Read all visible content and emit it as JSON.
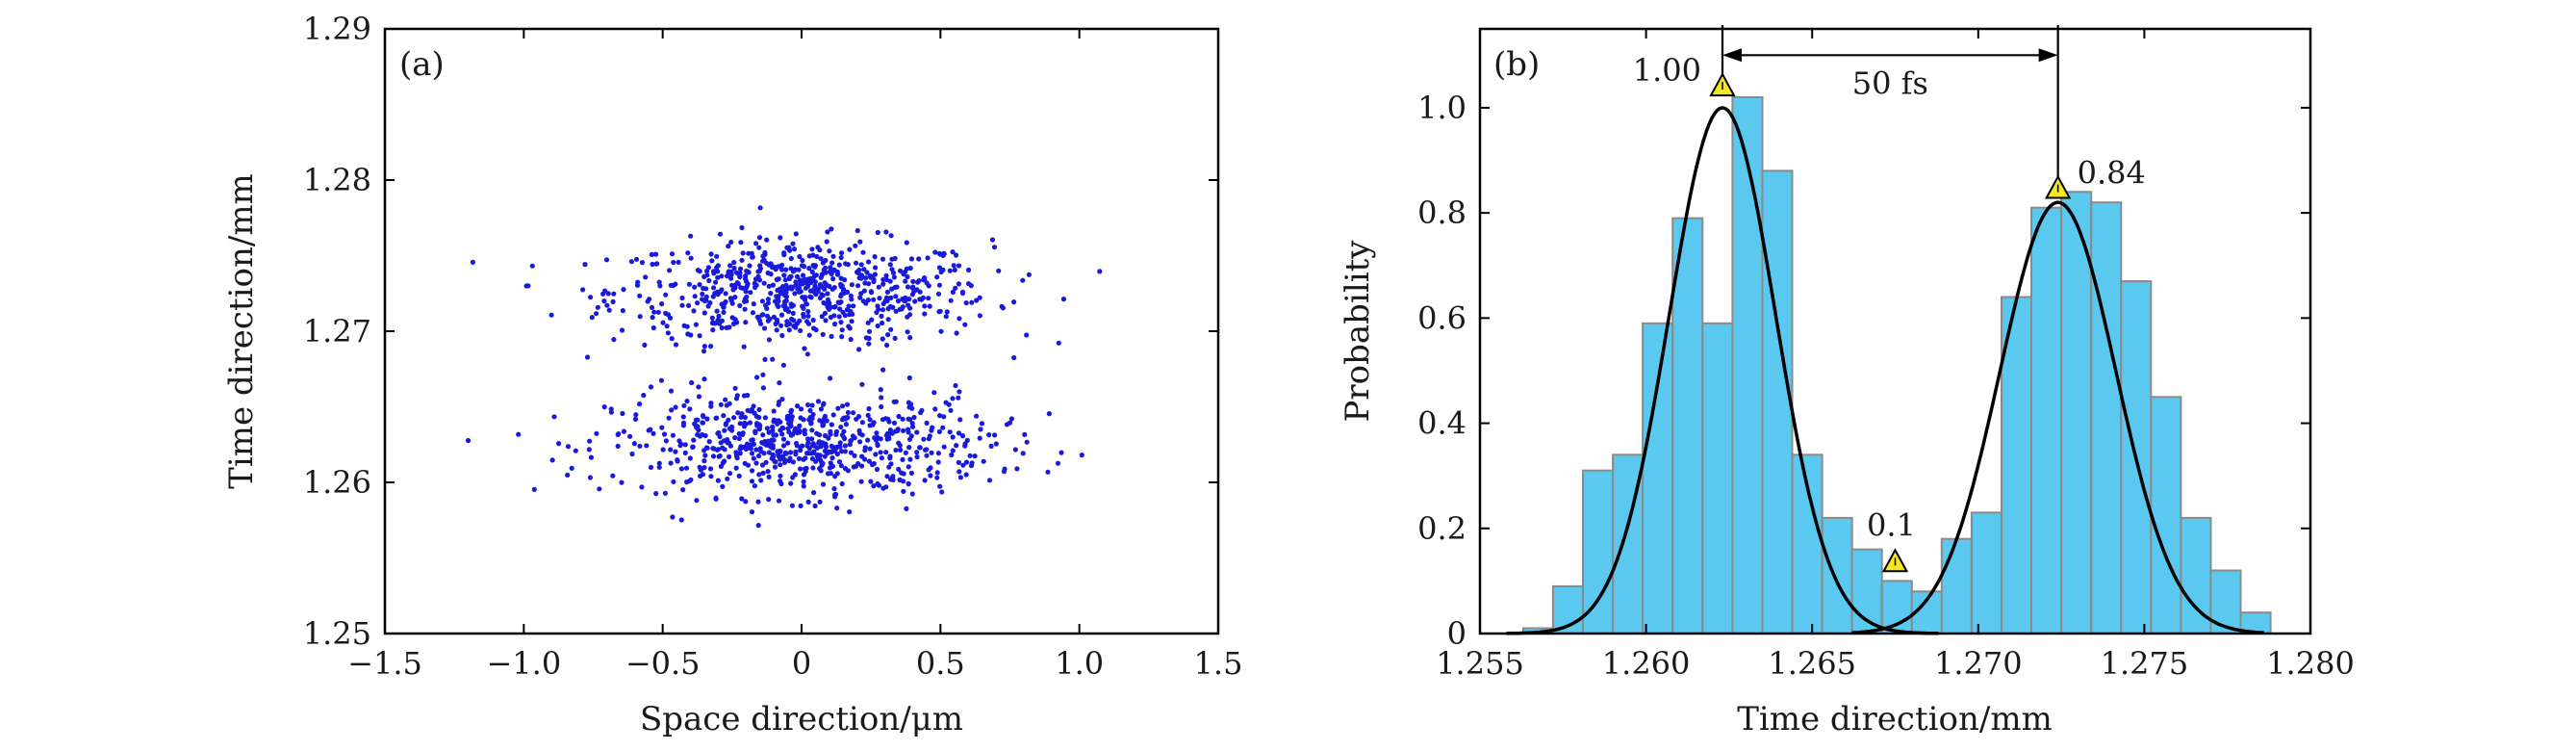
{
  "chart_data": [
    {
      "type": "scatter",
      "panel_label": "(a)",
      "xlabel": "Space direction/μm",
      "ylabel": "Time direction/mm",
      "xlim": [
        -1.5,
        1.5
      ],
      "ylim": [
        1.25,
        1.29
      ],
      "xticks": [
        -1.5,
        -1.0,
        -0.5,
        0,
        0.5,
        1.0,
        1.5
      ],
      "xtick_labels": [
        "−1.5",
        "−1.0",
        "−0.5",
        "0",
        "0.5",
        "1.0",
        "1.5"
      ],
      "yticks": [
        1.25,
        1.26,
        1.27,
        1.28,
        1.29
      ],
      "ytick_labels": [
        "1.25",
        "1.26",
        "1.27",
        "1.28",
        "1.29"
      ],
      "point_color": "#1a1adb",
      "grid": false,
      "clusters": [
        {
          "name": "upper",
          "x_center": 0.0,
          "y_center": 1.2726,
          "x_spread": 0.34,
          "y_spread": 0.0017,
          "count": 700
        },
        {
          "name": "lower",
          "x_center": 0.0,
          "y_center": 1.2625,
          "x_spread": 0.34,
          "y_spread": 0.0017,
          "count": 700
        }
      ]
    },
    {
      "type": "bar",
      "panel_label": "(b)",
      "xlabel": "Time direction/mm",
      "ylabel": "Probability",
      "xlim": [
        1.255,
        1.28
      ],
      "ylim": [
        0,
        1.15
      ],
      "xticks": [
        1.255,
        1.26,
        1.265,
        1.27,
        1.275,
        1.28
      ],
      "xtick_labels": [
        "1.255",
        "1.260",
        "1.265",
        "1.270",
        "1.275",
        "1.280"
      ],
      "yticks": [
        0,
        0.2,
        0.4,
        0.6,
        0.8,
        1.0
      ],
      "ytick_labels": [
        "0",
        "0.2",
        "0.4",
        "0.6",
        "0.8",
        "1.0"
      ],
      "bar_color": "#5bc8f0",
      "bar_edge_color": "#8a8a8a",
      "bin_edges": [
        1.2563,
        1.2572,
        1.2581,
        1.259,
        1.2599,
        1.2608,
        1.2617,
        1.2626,
        1.2635,
        1.2644,
        1.2653,
        1.2662,
        1.2671,
        1.268,
        1.2689,
        1.2698,
        1.2707,
        1.2716,
        1.2725,
        1.2734,
        1.2743,
        1.2752,
        1.2761,
        1.277,
        1.2779,
        1.2788
      ],
      "values": [
        0.01,
        0.09,
        0.31,
        0.34,
        0.59,
        0.79,
        0.59,
        1.02,
        0.88,
        0.34,
        0.22,
        0.16,
        0.1,
        0.08,
        0.18,
        0.23,
        0.64,
        0.81,
        0.84,
        0.82,
        0.67,
        0.45,
        0.22,
        0.12,
        0.04
      ],
      "fit_curves": [
        {
          "name": "peak-1",
          "mu": 1.2623,
          "sigma": 0.0016,
          "amplitude": 1.0,
          "x_range": [
            1.2558,
            1.2688
          ],
          "color": "#000000"
        },
        {
          "name": "peak-2",
          "mu": 1.2724,
          "sigma": 0.00175,
          "amplitude": 0.82,
          "x_range": [
            1.2662,
            1.2786
          ],
          "color": "#000000"
        }
      ],
      "markers": [
        {
          "name": "peak-1-marker",
          "x": 1.2623,
          "y": 1.04,
          "label": "1.00",
          "label_side": "left"
        },
        {
          "name": "peak-2-marker",
          "x": 1.2724,
          "y": 0.845,
          "label": "0.84",
          "label_side": "right"
        },
        {
          "name": "valley-marker",
          "x": 1.2675,
          "y": 0.135,
          "label": "0.1",
          "label_side": "above"
        }
      ],
      "marker_color": "#f5e623",
      "separation": {
        "x1": 1.2623,
        "x2": 1.2724,
        "y": 1.1,
        "label": "50 fs"
      }
    }
  ]
}
